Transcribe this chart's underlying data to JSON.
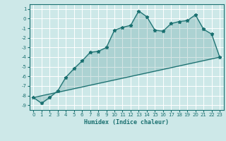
{
  "title": "",
  "xlabel": "Humidex (Indice chaleur)",
  "xlim": [
    -0.5,
    23.5
  ],
  "ylim": [
    -9.5,
    1.5
  ],
  "xticks": [
    0,
    1,
    2,
    3,
    4,
    5,
    6,
    7,
    8,
    9,
    10,
    11,
    12,
    13,
    14,
    15,
    16,
    17,
    18,
    19,
    20,
    21,
    22,
    23
  ],
  "yticks": [
    1,
    0,
    -1,
    -2,
    -3,
    -4,
    -5,
    -6,
    -7,
    -8,
    -9
  ],
  "bg_color": "#cde8e8",
  "line_color": "#1a7070",
  "grid_color": "#ffffff",
  "curve1_x": [
    0,
    1,
    2,
    3,
    4,
    5,
    6,
    7,
    8,
    9,
    10,
    11,
    12,
    13,
    14,
    15,
    16,
    17,
    18,
    19,
    20,
    21,
    22,
    23
  ],
  "curve1_y": [
    -8.2,
    -8.8,
    -8.2,
    -7.5,
    -6.1,
    -5.2,
    -4.4,
    -3.5,
    -3.4,
    -3.0,
    -1.2,
    -0.9,
    -0.7,
    0.8,
    0.2,
    -1.2,
    -1.3,
    -0.5,
    -0.3,
    -0.2,
    0.4,
    -1.1,
    -1.6,
    -4.0
  ],
  "baseline_x": [
    0,
    23
  ],
  "baseline_y": [
    -8.2,
    -4.0
  ]
}
